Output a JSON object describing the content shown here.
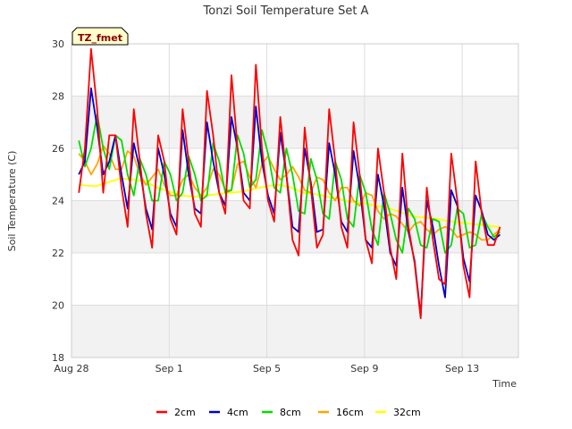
{
  "chart_data": {
    "type": "line",
    "title": "Tonzi Soil Temperature Set A",
    "xlabel": "Time",
    "ylabel": "Soil Temperature (C)",
    "tag": "TZ_fmet",
    "x_ticks": [
      "Aug 28",
      "Sep 1",
      "Sep 5",
      "Sep 9",
      "Sep 13"
    ],
    "x_tick_days": [
      0,
      4,
      8,
      12,
      16
    ],
    "xlim_days": [
      0,
      18.3
    ],
    "ylim": [
      18,
      30
    ],
    "y_ticks": [
      18,
      20,
      22,
      24,
      26,
      28,
      30
    ],
    "grid": true,
    "legend_position": "bottom",
    "colors": {
      "2cm": "#ff0000",
      "4cm": "#0000cc",
      "8cm": "#00dd00",
      "16cm": "#ffa500",
      "32cm": "#ffff00"
    },
    "series": [
      {
        "name": "2cm",
        "color": "#ff0000",
        "x": [
          0.3,
          0.55,
          0.8,
          1.05,
          1.3,
          1.55,
          1.8,
          2.05,
          2.3,
          2.55,
          2.8,
          3.05,
          3.3,
          3.55,
          3.8,
          4.05,
          4.3,
          4.55,
          4.8,
          5.05,
          5.3,
          5.55,
          5.8,
          6.05,
          6.3,
          6.55,
          6.8,
          7.05,
          7.3,
          7.55,
          7.8,
          8.05,
          8.3,
          8.55,
          8.8,
          9.05,
          9.3,
          9.55,
          9.8,
          10.05,
          10.3,
          10.55,
          10.8,
          11.05,
          11.3,
          11.55,
          11.8,
          12.05,
          12.3,
          12.55,
          12.8,
          13.05,
          13.3,
          13.55,
          13.8,
          14.05,
          14.3,
          14.55,
          14.8,
          15.05,
          15.3,
          15.55,
          15.8,
          16.05,
          16.3,
          16.55,
          16.8,
          17.05,
          17.3,
          17.55
        ],
        "y": [
          24.3,
          26.0,
          29.8,
          27.5,
          24.3,
          26.5,
          26.5,
          24.5,
          23.0,
          27.5,
          25.5,
          23.5,
          22.2,
          26.5,
          25.5,
          23.3,
          22.7,
          27.5,
          25.5,
          23.5,
          23.0,
          28.2,
          26.5,
          24.3,
          23.5,
          28.8,
          26.0,
          24.0,
          23.7,
          29.2,
          26.0,
          24.0,
          23.2,
          27.2,
          25.0,
          22.5,
          21.9,
          26.8,
          24.5,
          22.2,
          22.7,
          27.5,
          25.5,
          23.0,
          22.2,
          27.0,
          25.0,
          22.5,
          21.6,
          26.0,
          24.3,
          22.2,
          21.0,
          25.8,
          23.0,
          21.6,
          19.5,
          24.5,
          22.5,
          21.0,
          20.8,
          25.8,
          24.0,
          21.5,
          20.3,
          25.5,
          23.5,
          22.3,
          22.3,
          23.0
        ]
      },
      {
        "name": "4cm",
        "color": "#0000cc",
        "x": [
          0.3,
          0.55,
          0.8,
          1.05,
          1.3,
          1.55,
          1.8,
          2.05,
          2.3,
          2.55,
          2.8,
          3.05,
          3.3,
          3.55,
          3.8,
          4.05,
          4.3,
          4.55,
          4.8,
          5.05,
          5.3,
          5.55,
          5.8,
          6.05,
          6.3,
          6.55,
          6.8,
          7.05,
          7.3,
          7.55,
          7.8,
          8.05,
          8.3,
          8.55,
          8.8,
          9.05,
          9.3,
          9.55,
          9.8,
          10.05,
          10.3,
          10.55,
          10.8,
          11.05,
          11.3,
          11.55,
          11.8,
          12.05,
          12.3,
          12.55,
          12.8,
          13.05,
          13.3,
          13.55,
          13.8,
          14.05,
          14.3,
          14.55,
          14.8,
          15.05,
          15.3,
          15.55,
          15.8,
          16.05,
          16.3,
          16.55,
          16.8,
          17.05,
          17.3,
          17.55
        ],
        "y": [
          25.0,
          25.5,
          28.3,
          26.8,
          25.0,
          25.5,
          26.5,
          25.0,
          23.7,
          26.2,
          25.2,
          23.7,
          22.9,
          26.0,
          25.0,
          23.5,
          23.0,
          26.7,
          25.0,
          23.7,
          23.5,
          27.0,
          25.5,
          24.3,
          23.8,
          27.2,
          26.0,
          24.3,
          24.0,
          27.6,
          25.5,
          24.2,
          23.5,
          26.6,
          25.0,
          23.0,
          22.8,
          26.0,
          24.7,
          22.8,
          22.9,
          26.2,
          25.0,
          23.2,
          22.8,
          25.9,
          24.5,
          22.5,
          22.2,
          25.0,
          23.8,
          22.0,
          21.5,
          24.5,
          22.8,
          21.7,
          19.6,
          24.0,
          23.0,
          21.5,
          20.3,
          24.4,
          23.8,
          21.8,
          20.9,
          24.2,
          23.6,
          22.7,
          22.5,
          22.7
        ]
      },
      {
        "name": "8cm",
        "color": "#00dd00",
        "x": [
          0.3,
          0.55,
          0.8,
          1.05,
          1.3,
          1.55,
          1.8,
          2.05,
          2.3,
          2.55,
          2.8,
          3.05,
          3.3,
          3.55,
          3.8,
          4.05,
          4.3,
          4.55,
          4.8,
          5.05,
          5.3,
          5.55,
          5.8,
          6.05,
          6.3,
          6.55,
          6.8,
          7.05,
          7.3,
          7.55,
          7.8,
          8.05,
          8.3,
          8.55,
          8.8,
          9.05,
          9.3,
          9.55,
          9.8,
          10.05,
          10.3,
          10.55,
          10.8,
          11.05,
          11.3,
          11.55,
          11.8,
          12.05,
          12.3,
          12.55,
          12.8,
          13.05,
          13.3,
          13.55,
          13.8,
          14.05,
          14.3,
          14.55,
          14.8,
          15.05,
          15.3,
          15.55,
          15.8,
          16.05,
          16.3,
          16.55,
          16.8,
          17.05,
          17.3,
          17.55
        ],
        "y": [
          26.3,
          25.3,
          26.0,
          27.3,
          26.0,
          25.2,
          26.5,
          26.3,
          25.0,
          24.2,
          25.6,
          25.0,
          24.0,
          24.0,
          25.5,
          25.0,
          24.0,
          24.3,
          25.7,
          25.0,
          24.0,
          24.2,
          26.2,
          25.5,
          24.3,
          24.4,
          26.5,
          25.8,
          24.5,
          24.8,
          26.7,
          25.8,
          24.5,
          24.3,
          26.0,
          25.0,
          23.6,
          23.5,
          25.6,
          24.8,
          23.5,
          23.3,
          25.5,
          24.8,
          23.3,
          23.0,
          25.0,
          24.3,
          22.9,
          22.3,
          24.3,
          23.5,
          22.5,
          22.0,
          23.7,
          23.3,
          22.3,
          22.2,
          23.3,
          23.2,
          22.0,
          22.3,
          23.7,
          23.5,
          22.2,
          22.3,
          23.5,
          23.0,
          22.6,
          22.8
        ]
      },
      {
        "name": "16cm",
        "color": "#ffa500",
        "x": [
          0.3,
          0.55,
          0.8,
          1.05,
          1.3,
          1.55,
          1.8,
          2.05,
          2.3,
          2.55,
          2.8,
          3.05,
          3.3,
          3.55,
          3.8,
          4.05,
          4.3,
          4.55,
          4.8,
          5.05,
          5.3,
          5.55,
          5.8,
          6.05,
          6.3,
          6.55,
          6.8,
          7.05,
          7.3,
          7.55,
          7.8,
          8.05,
          8.3,
          8.55,
          8.8,
          9.05,
          9.3,
          9.55,
          9.8,
          10.05,
          10.3,
          10.55,
          10.8,
          11.05,
          11.3,
          11.55,
          11.8,
          12.05,
          12.3,
          12.55,
          12.8,
          13.05,
          13.3,
          13.55,
          13.8,
          14.05,
          14.3,
          14.55,
          14.8,
          15.05,
          15.3,
          15.55,
          15.8,
          16.05,
          16.3,
          16.55,
          16.8,
          17.05,
          17.3,
          17.55
        ],
        "y": [
          25.8,
          25.5,
          25.0,
          25.4,
          26.1,
          25.8,
          25.2,
          25.2,
          25.9,
          25.7,
          25.0,
          24.6,
          24.9,
          25.2,
          24.6,
          24.2,
          24.2,
          24.8,
          25.0,
          24.5,
          24.2,
          24.5,
          25.2,
          25.0,
          24.4,
          24.4,
          25.4,
          25.5,
          24.9,
          24.5,
          25.4,
          25.7,
          25.2,
          24.8,
          25.0,
          25.3,
          24.9,
          24.4,
          24.3,
          24.9,
          24.8,
          24.3,
          24.0,
          24.5,
          24.5,
          24.0,
          23.8,
          24.3,
          24.2,
          23.6,
          23.3,
          23.5,
          23.4,
          23.1,
          22.8,
          23.1,
          23.2,
          22.9,
          22.7,
          22.9,
          23.0,
          22.9,
          22.6,
          22.7,
          22.8,
          22.7,
          22.5,
          22.5,
          22.7,
          22.9
        ]
      },
      {
        "name": "32cm",
        "color": "#ffff00",
        "x": [
          0.3,
          1.0,
          1.5,
          2.0,
          2.5,
          3.0,
          3.5,
          4.0,
          4.5,
          5.0,
          5.5,
          6.0,
          6.5,
          7.0,
          7.5,
          8.0,
          8.5,
          9.0,
          9.5,
          10.0,
          10.5,
          11.0,
          11.5,
          12.0,
          12.5,
          13.0,
          13.5,
          14.0,
          14.5,
          15.0,
          15.5,
          16.0,
          16.5,
          17.0,
          17.5
        ],
        "y": [
          24.6,
          24.55,
          24.7,
          24.85,
          24.8,
          24.75,
          24.5,
          24.35,
          24.2,
          24.15,
          24.2,
          24.25,
          24.3,
          24.35,
          24.45,
          24.55,
          24.6,
          24.5,
          24.3,
          24.25,
          24.15,
          24.05,
          23.95,
          23.9,
          23.8,
          23.7,
          23.55,
          23.4,
          23.35,
          23.3,
          23.2,
          23.15,
          23.1,
          23.05,
          23.0
        ]
      }
    ]
  }
}
